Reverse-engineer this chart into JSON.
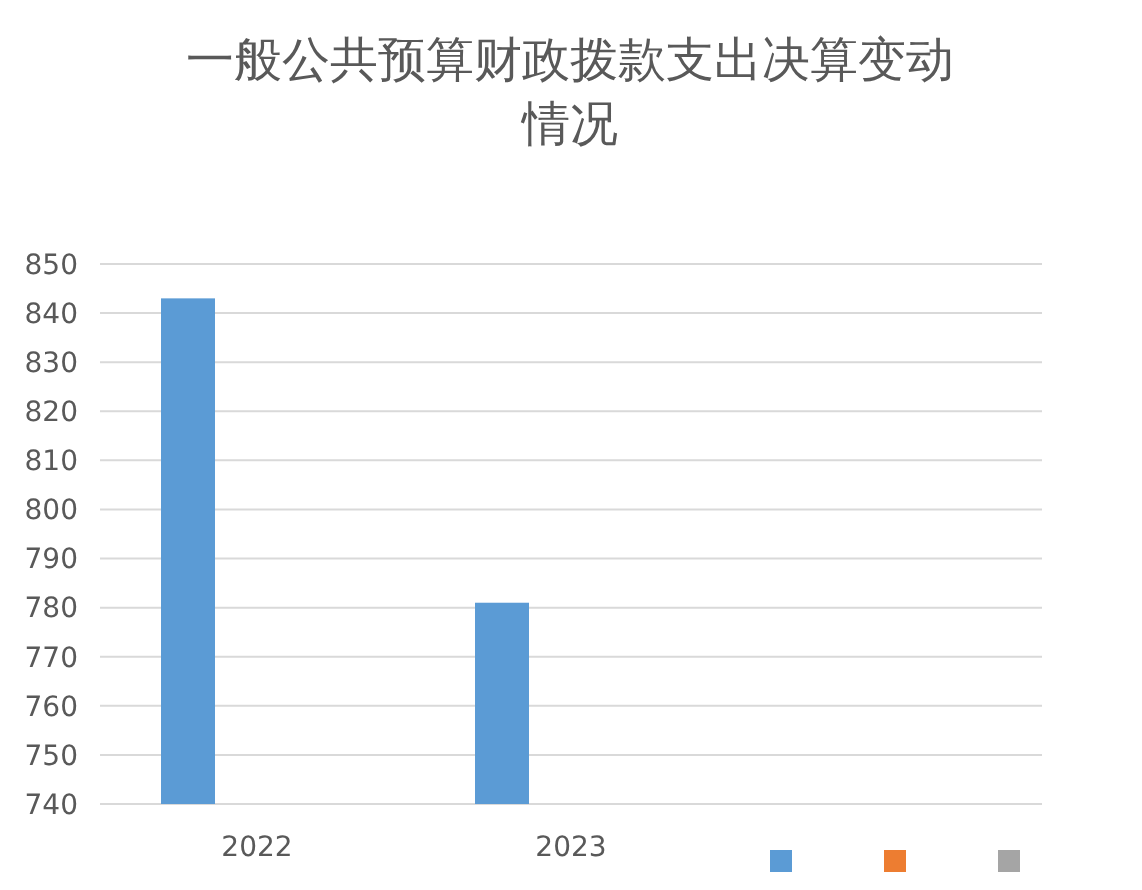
{
  "chart_data": {
    "type": "bar",
    "title": "一般公共预算财政拨款支出决算变动情况",
    "categories": [
      "2022",
      "2023",
      null
    ],
    "series": [
      {
        "color": "#5b9bd5",
        "values": [
          843,
          781,
          null
        ]
      },
      {
        "color": "#ed7d31",
        "values": [
          null,
          null,
          null
        ]
      },
      {
        "color": "#a5a5a5",
        "values": [
          null,
          null,
          null
        ]
      }
    ],
    "ylim": [
      740,
      850
    ],
    "yticks": [
      740,
      750,
      760,
      770,
      780,
      790,
      800,
      810,
      820,
      830,
      840,
      850
    ],
    "grid": "y"
  }
}
